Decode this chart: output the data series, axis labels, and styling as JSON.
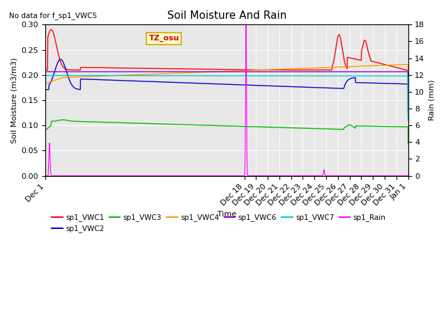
{
  "title": "Soil Moisture And Rain",
  "no_data_text": "No data for f_sp1_VWC5",
  "ylabel_left": "Soil Moisture (m3/m3)",
  "ylabel_right": "Rain (mm)",
  "xlabel": "Time",
  "ylim_left": [
    0.0,
    0.3
  ],
  "ylim_right": [
    0,
    18
  ],
  "bg_color": "#e8e8e8",
  "annotation_text": "TZ_osu",
  "annotation_bg": "#ffffcc",
  "annotation_border": "#ccaa00",
  "x_ticks_labels": [
    "Dec 1",
    "Dec 18",
    "Dec 19",
    "Dec 20",
    "Dec 21",
    "Dec 22",
    "Dec 23",
    "Dec 24",
    "Dec 25",
    "Dec 26",
    "Dec 27",
    "Dec 28",
    "Dec 29",
    "Dec 30",
    "Dec 31",
    "Jan 1"
  ],
  "x_ticks_pos": [
    0,
    17,
    18,
    19,
    20,
    21,
    22,
    23,
    24,
    25,
    26,
    27,
    28,
    29,
    30,
    31
  ],
  "legend_row1": [
    {
      "label": "sp1_VWC1",
      "color": "#ff0000"
    },
    {
      "label": "sp1_VWC2",
      "color": "#0000cc"
    },
    {
      "label": "sp1_VWC3",
      "color": "#00bb00"
    },
    {
      "label": "sp1_VWC4",
      "color": "#ff9900"
    },
    {
      "label": "sp1_VWC6",
      "color": "#9900cc"
    },
    {
      "label": "sp1_VWC7",
      "color": "#00cccc"
    }
  ],
  "legend_row2": [
    {
      "label": "sp1_Rain",
      "color": "#ff00ff"
    }
  ]
}
